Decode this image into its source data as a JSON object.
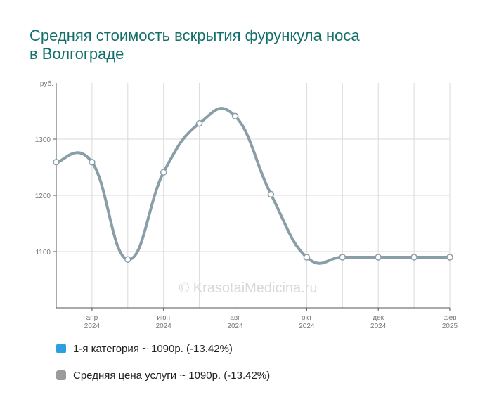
{
  "title_line1": "Средняя стоимость вскрытия фурункула носа",
  "title_line2": "в Волгограде",
  "watermark": "© KrasotaiMedicina.ru",
  "chart_data": {
    "type": "line",
    "y_unit": "руб.",
    "ylim": [
      1000,
      1400
    ],
    "y_ticks": [
      1100,
      1200,
      1300
    ],
    "x_ticks": [
      {
        "month": "апр",
        "year": "2024"
      },
      {
        "month": "июн",
        "year": "2024"
      },
      {
        "month": "авг",
        "year": "2024"
      },
      {
        "month": "окт",
        "year": "2024"
      },
      {
        "month": "дек",
        "year": "2024"
      },
      {
        "month": "фев",
        "year": "2025"
      }
    ],
    "x": [
      "2024-03",
      "2024-04",
      "2024-05",
      "2024-06",
      "2024-07",
      "2024-08",
      "2024-09",
      "2024-10",
      "2024-11",
      "2024-12",
      "2025-01",
      "2025-02"
    ],
    "series": [
      {
        "name": "1-я категория",
        "values": [
          1259,
          1259,
          1086,
          1241,
          1328,
          1341,
          1202,
          1090,
          1090,
          1090,
          1090,
          1090
        ]
      },
      {
        "name": "Средняя цена услуги",
        "values": [
          1259,
          1259,
          1086,
          1241,
          1328,
          1341,
          1202,
          1090,
          1090,
          1090,
          1090,
          1090
        ]
      }
    ],
    "grid": true
  },
  "legend": [
    {
      "label": "1-я категория ~ 1090р. (-13.42%)",
      "color": "#2b9fe0"
    },
    {
      "label": "Средняя цена услуги ~ 1090р. (-13.42%)",
      "color": "#9b9b9b"
    }
  ],
  "colors": {
    "line": "#8a9ea8",
    "grid": "#d9d9d9",
    "axis": "#555555",
    "title": "#146f6a"
  }
}
